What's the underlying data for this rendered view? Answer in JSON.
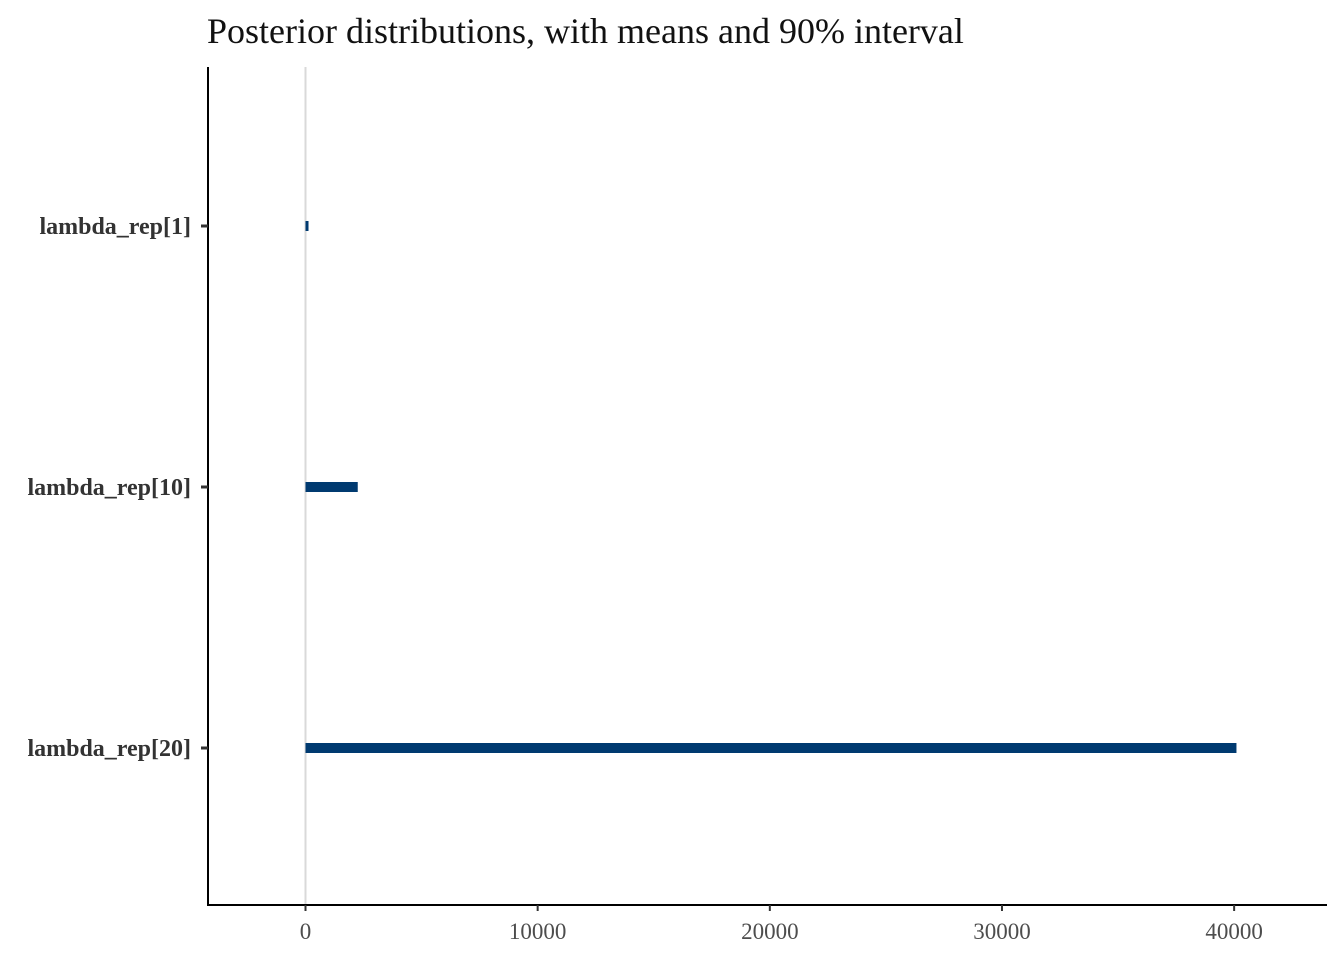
{
  "chart_data": {
    "type": "interval",
    "title": "Posterior distributions, with means and 90% interval",
    "xlabel": "",
    "ylabel": "",
    "xlim": [
      -4200,
      44000
    ],
    "x_ticks": [
      0,
      10000,
      20000,
      30000,
      40000
    ],
    "x_tick_labels": [
      "0",
      "10000",
      "20000",
      "30000",
      "40000"
    ],
    "reference_line": 0,
    "grid": false,
    "legend": "none",
    "color": "#003a70",
    "parameters": [
      {
        "label": "lambda_rep[1]",
        "low": 0,
        "high": 80
      },
      {
        "label": "lambda_rep[10]",
        "low": 0,
        "high": 2250
      },
      {
        "label": "lambda_rep[20]",
        "low": 0,
        "high": 40100
      }
    ]
  }
}
